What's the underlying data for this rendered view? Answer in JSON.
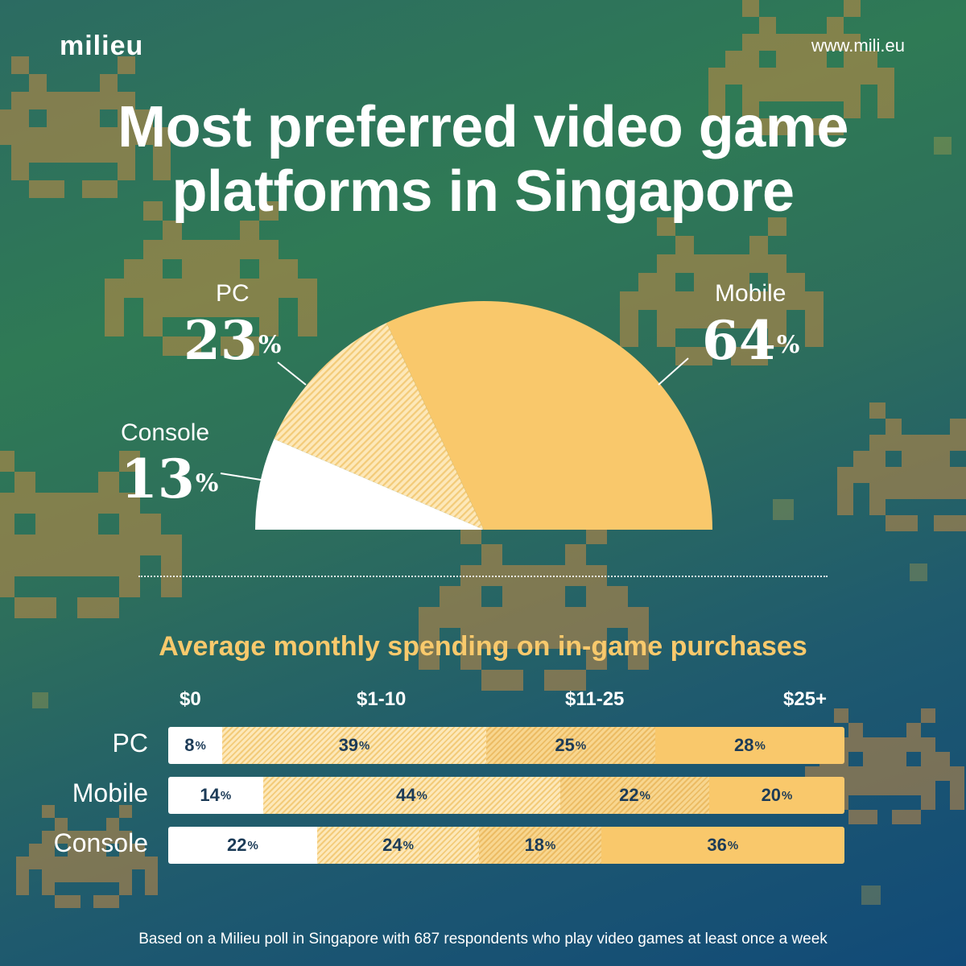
{
  "header": {
    "brand": "milieu",
    "url": "www.mili.eu"
  },
  "title_line1": "Most preferred video game",
  "title_line2": "platforms in Singapore",
  "pie": {
    "pc": {
      "label": "PC",
      "value": "23"
    },
    "mobile": {
      "label": "Mobile",
      "value": "64"
    },
    "console": {
      "label": "Console",
      "value": "13"
    },
    "percent_sign": "%"
  },
  "spending": {
    "title": "Average monthly spending on in-game purchases",
    "columns": [
      "$0",
      "$1-10",
      "$11-25",
      "$25+"
    ],
    "rows": [
      {
        "label": "PC",
        "values": [
          "8",
          "39",
          "25",
          "28"
        ]
      },
      {
        "label": "Mobile",
        "values": [
          "14",
          "44",
          "22",
          "20"
        ]
      },
      {
        "label": "Console",
        "values": [
          "22",
          "24",
          "18",
          "36"
        ]
      }
    ]
  },
  "footnote": "Based on a Milieu poll in Singapore with 687 respondents who play video games at least once a week",
  "colors": {
    "accent_yellow": "#f9c86b",
    "hatched_light": "#fde8b9",
    "text_dark": "#1c3b57",
    "background_green": "#2f7a55",
    "background_blue": "#114a78",
    "invader_orange": "#c98a44"
  },
  "chart_data": [
    {
      "type": "pie",
      "title": "Most preferred video game platforms in Singapore",
      "shape": "semicircle",
      "categories": [
        "Console",
        "PC",
        "Mobile"
      ],
      "values": [
        13,
        23,
        64
      ],
      "unit": "%"
    },
    {
      "type": "bar",
      "orientation": "horizontal",
      "stacked": true,
      "title": "Average monthly spending on in-game purchases",
      "categories": [
        "PC",
        "Mobile",
        "Console"
      ],
      "series": [
        {
          "name": "$0",
          "values": [
            8,
            14,
            22
          ]
        },
        {
          "name": "$1-10",
          "values": [
            39,
            44,
            24
          ]
        },
        {
          "name": "$11-25",
          "values": [
            25,
            22,
            18
          ]
        },
        {
          "name": "$25+",
          "values": [
            28,
            20,
            36
          ]
        }
      ],
      "unit": "%",
      "legend": "top"
    }
  ]
}
